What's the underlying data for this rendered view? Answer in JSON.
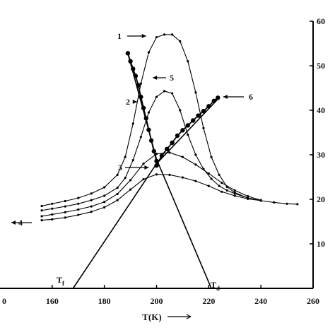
{
  "chart_data": {
    "type": "line",
    "xlabel": "T(K)",
    "xlim": [
      140,
      260
    ],
    "ylim": [
      0,
      60
    ],
    "x_ticks": [
      160,
      180,
      200,
      220,
      240,
      260
    ],
    "x_tick_labels": [
      "160",
      "180",
      "200",
      "220",
      "240",
      "260"
    ],
    "x_tick_label_left_fragment": "0",
    "y_ticks": [
      10,
      20,
      30,
      40,
      50,
      60
    ],
    "y_tick_labels": [
      "10",
      "20",
      "30",
      "40",
      "50",
      "60"
    ],
    "series": [
      {
        "name": "1",
        "x": [
          156,
          160,
          165,
          170,
          175,
          180,
          185,
          188,
          191,
          194,
          197,
          200,
          203,
          206,
          209,
          212,
          215,
          218,
          221,
          224,
          227,
          230,
          235,
          240,
          245,
          250,
          254
        ],
        "y": [
          18.5,
          19,
          19.6,
          20.3,
          21.3,
          22.7,
          25.5,
          29.5,
          37,
          46,
          53,
          56.4,
          57,
          57,
          55.5,
          51,
          44,
          36,
          29.5,
          25.5,
          22.8,
          21.5,
          20.3,
          19.7,
          19.3,
          19.0,
          18.9
        ]
      },
      {
        "name": "2",
        "x": [
          156,
          160,
          165,
          170,
          175,
          180,
          185,
          188,
          191,
          194,
          197,
          200,
          203,
          206,
          209,
          212,
          215,
          218,
          221,
          224,
          227,
          230,
          235,
          240
        ],
        "y": [
          17.5,
          17.9,
          18.4,
          19,
          19.8,
          20.8,
          22.6,
          24.8,
          28.8,
          34,
          39.5,
          43,
          44.3,
          43.8,
          40,
          34.5,
          30,
          26.8,
          24.6,
          23,
          22,
          21.3,
          20.3,
          19.7
        ]
      },
      {
        "name": "3",
        "x": [
          156,
          160,
          165,
          170,
          175,
          180,
          185,
          190,
          195,
          200,
          205,
          210,
          215,
          220,
          225,
          230,
          235,
          240
        ],
        "y": [
          16.2,
          16.6,
          17.1,
          17.7,
          18.4,
          19.4,
          21.2,
          24.3,
          28,
          30.2,
          30.5,
          29.5,
          27.8,
          25.8,
          23.7,
          22,
          20.7,
          19.8
        ]
      },
      {
        "name": "4",
        "x": [
          156,
          160,
          165,
          170,
          175,
          180,
          185,
          190,
          195,
          200,
          205,
          210,
          215,
          220,
          225,
          230,
          235,
          240
        ],
        "y": [
          15.3,
          15.5,
          15.9,
          16.5,
          17.2,
          18.2,
          19.8,
          22.2,
          24.5,
          25.6,
          25.5,
          24.9,
          24.1,
          23,
          21.7,
          20.8,
          20.1,
          19.7
        ]
      },
      {
        "name": "5",
        "x": [
          189,
          190,
          191,
          192,
          193,
          194,
          195,
          196,
          197,
          198,
          199,
          200
        ],
        "y": [
          52.8,
          51,
          49.3,
          47.7,
          45.6,
          43,
          40.5,
          38.2,
          35.6,
          33.2,
          30.8,
          28.6
        ]
      },
      {
        "name": "6",
        "x": [
          200,
          202,
          204,
          206,
          208,
          210,
          212,
          214,
          216,
          218,
          220,
          222,
          223.5
        ],
        "y": [
          27.6,
          29.8,
          31.3,
          32.7,
          34.3,
          35.5,
          36.6,
          37.7,
          38.8,
          39.8,
          40.9,
          42.1,
          42.8
        ]
      }
    ],
    "lines": [
      {
        "label": "Tf",
        "x": [
          168,
          200,
          224
        ],
        "y": [
          0,
          28,
          42.8
        ]
      },
      {
        "label": "Td",
        "x": [
          189,
          200,
          221
        ],
        "y": [
          52.8,
          29,
          0
        ]
      }
    ],
    "annotations": [
      {
        "text": "1",
        "target": [
          196,
          57
        ]
      },
      {
        "text": "5",
        "target": [
          198,
          47.5
        ]
      },
      {
        "text": "2",
        "target": [
          192.5,
          43
        ]
      },
      {
        "text": "6",
        "target": [
          225,
          43
        ]
      },
      {
        "text": "3",
        "target": [
          197,
          28
        ]
      },
      {
        "text": "4",
        "target": [
          142,
          15
        ]
      }
    ],
    "line_labels": [
      {
        "text": "T",
        "sub": "f"
      },
      {
        "text": "T",
        "sub": "d"
      }
    ],
    "grid": false,
    "legend": "none"
  }
}
